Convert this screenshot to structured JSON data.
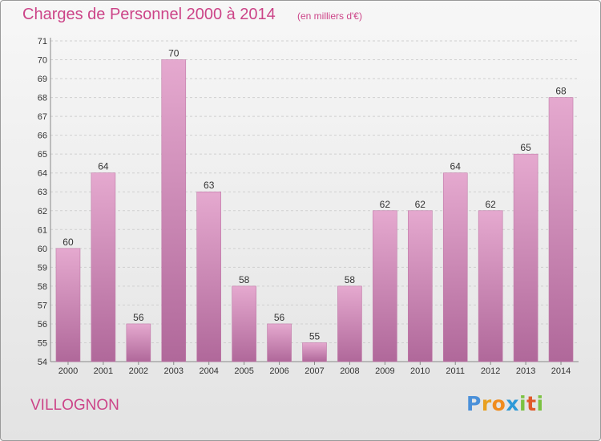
{
  "title": "Charges de Personnel 2000 à 2014",
  "subtitle": "(en milliers d'€)",
  "commune": "VILLOGNON",
  "logo": {
    "text": "Proxiti",
    "letters": [
      {
        "char": "P",
        "color": "#4a90d9"
      },
      {
        "char": "r",
        "color": "#e8a020"
      },
      {
        "char": "o",
        "color": "#f08c1e"
      },
      {
        "char": "x",
        "color": "#2e9ad8"
      },
      {
        "char": "i",
        "color": "#7cc242"
      },
      {
        "char": "t",
        "color": "#e05a2a"
      },
      {
        "char": "i",
        "color": "#7cc242"
      }
    ]
  },
  "colors": {
    "bar_top": "#e5a9cf",
    "bar_bottom": "#b0689a",
    "text_accent": "#cc4488"
  },
  "chart_data": {
    "type": "bar",
    "title": "Charges de Personnel 2000 à 2014",
    "subtitle": "(en milliers d'€)",
    "categories": [
      "2000",
      "2001",
      "2002",
      "2003",
      "2004",
      "2005",
      "2006",
      "2007",
      "2008",
      "2009",
      "2010",
      "2011",
      "2012",
      "2013",
      "2014"
    ],
    "values": [
      60,
      64,
      56,
      70,
      63,
      58,
      56,
      55,
      58,
      62,
      62,
      64,
      62,
      65,
      68
    ],
    "ylim": [
      54,
      71
    ],
    "yticks": [
      54,
      55,
      56,
      57,
      58,
      59,
      60,
      61,
      62,
      63,
      64,
      65,
      66,
      67,
      68,
      69,
      70,
      71
    ],
    "xlabel": "",
    "ylabel": "",
    "grid": true,
    "legend": "none",
    "data_labels": true
  }
}
